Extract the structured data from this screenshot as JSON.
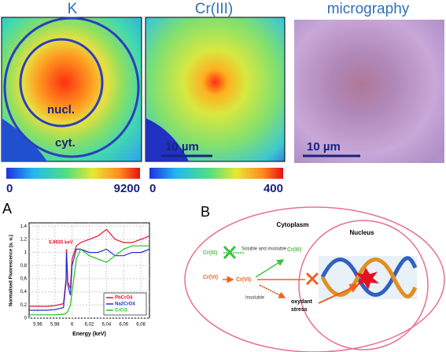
{
  "maps": [
    {
      "title": "K",
      "labels": [
        "nucl.",
        "cyt."
      ],
      "colorbar": [
        0,
        9200
      ]
    },
    {
      "title": "Cr(III)",
      "scale": "10 µm",
      "colorbar": [
        0,
        400
      ]
    },
    {
      "title": "micrography",
      "scale": "10 µm"
    }
  ],
  "chart_data": {
    "type": "line",
    "panel": "A",
    "xlabel": "Energy (keV)",
    "ylabel": "Normalised Fluorescence (a. u.)",
    "annotation": "5.9935 keV",
    "x": [
      5.95,
      5.96,
      5.97,
      5.98,
      5.99,
      5.993,
      5.9935,
      5.995,
      5.998,
      6.0,
      6.005,
      6.01,
      6.02,
      6.03,
      6.04,
      6.05,
      6.06,
      6.07,
      6.08,
      6.09
    ],
    "series": [
      {
        "name": "PbCrO4",
        "color": "#e8102a",
        "values": [
          0.18,
          0.18,
          0.18,
          0.19,
          0.22,
          0.6,
          1.05,
          0.55,
          0.45,
          0.9,
          1.1,
          1.15,
          1.2,
          1.25,
          1.35,
          1.2,
          1.15,
          1.15,
          1.2,
          1.25
        ]
      },
      {
        "name": "Na2CrO4",
        "color": "#2a2ad0",
        "values": [
          0.12,
          0.12,
          0.12,
          0.13,
          0.16,
          0.55,
          1.0,
          0.5,
          0.35,
          0.8,
          1.05,
          1.05,
          1.0,
          1.0,
          1.05,
          0.95,
          0.95,
          1.0,
          1.0,
          1.05
        ]
      },
      {
        "name": "CrCl3",
        "color": "#20c020",
        "values": [
          0.05,
          0.05,
          0.05,
          0.05,
          0.06,
          0.07,
          0.08,
          0.1,
          0.2,
          0.4,
          0.9,
          1.05,
          0.95,
          0.9,
          0.85,
          0.95,
          1.05,
          1.1,
          1.1,
          1.1
        ]
      }
    ],
    "xlim": [
      5.95,
      6.09
    ],
    "xticks": [
      {
        "value": 5.96,
        "label": "5,96"
      },
      {
        "value": 5.98,
        "label": "5,98"
      },
      6,
      {
        "value": 6.02,
        "label": "6,02"
      },
      {
        "value": 6.04,
        "label": "6,04"
      },
      {
        "value": 6.06,
        "label": "6,06"
      },
      {
        "value": 6.08,
        "label": "6,08"
      }
    ],
    "ylim": [
      0,
      1.45
    ],
    "yticks": [
      0,
      {
        "value": 0.2,
        "label": "0,2"
      },
      {
        "value": 0.4,
        "label": "0,4"
      },
      {
        "value": 0.6,
        "label": "0,6"
      },
      {
        "value": 0.8,
        "label": "0,8"
      },
      1,
      {
        "value": 1.2,
        "label": "1,2"
      },
      {
        "value": 1.4,
        "label": "1,4"
      }
    ],
    "legend": "lower right"
  },
  "diagram": {
    "panel": "B",
    "cytoplasm": "Cytoplasm",
    "nucleus": "Nucleus",
    "cr3_in": "Cr(III)",
    "cr3_out": "Cr(III)",
    "cr6_in": "Cr(VI)",
    "cr6_mid": "Cr(VI)",
    "soluble": "Soluble and insoluble",
    "insoluble": "Insoluble",
    "stress": [
      "oxydant",
      "stress"
    ]
  }
}
